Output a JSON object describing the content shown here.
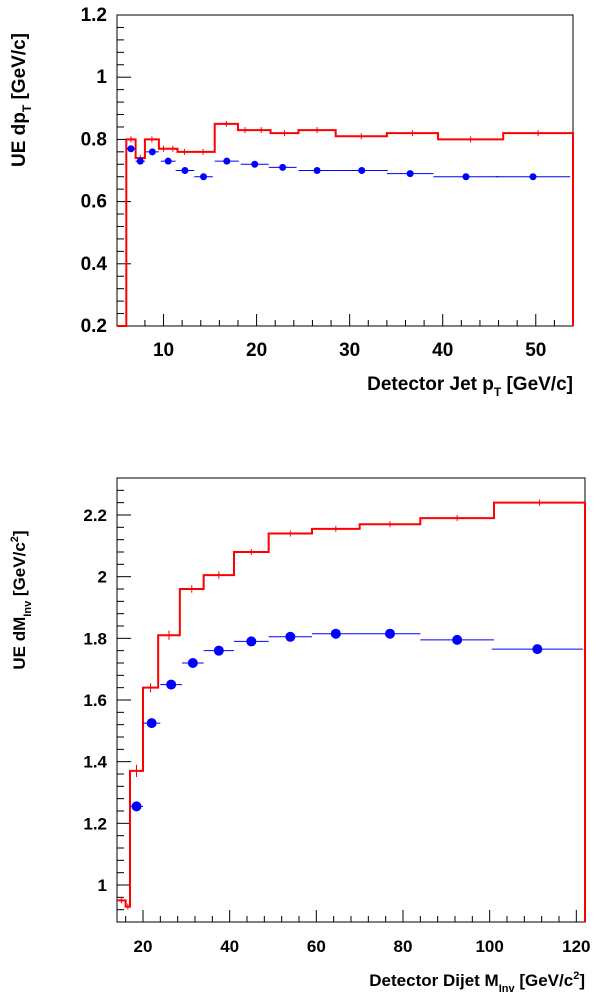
{
  "chart_data": [
    {
      "type": "line",
      "title": "",
      "xlabel": {
        "main": "Detector Jet p",
        "sub": "T",
        "unit": " [GeV/c]"
      },
      "ylabel": {
        "main": "UE dp",
        "sub": "T",
        "unit": " [GeV/c]"
      },
      "xlim": [
        5,
        54
      ],
      "ylim": [
        0.2,
        1.2
      ],
      "xticks": [
        10,
        20,
        30,
        40,
        50
      ],
      "xtick_labels": [
        "10",
        "20",
        "30",
        "40",
        "50"
      ],
      "yticks": [
        0.2,
        0.4,
        0.6,
        0.8,
        1.0,
        1.2
      ],
      "ytick_labels": [
        "0.2",
        "0.4",
        "0.6",
        "0.8",
        "1",
        "1.2"
      ],
      "grid": false,
      "series": [
        {
          "style": "step",
          "color": "#ff0000",
          "edges": [
            5,
            6,
            7,
            8,
            9.5,
            10.5,
            11.5,
            13,
            15.5,
            18,
            19.5,
            21.5,
            24.5,
            28.5,
            34,
            39.5,
            46.5,
            54
          ],
          "values": [
            0.2,
            0.8,
            0.74,
            0.8,
            0.77,
            0.77,
            0.76,
            0.76,
            0.85,
            0.83,
            0.83,
            0.82,
            0.83,
            0.81,
            0.82,
            0.8,
            0.82
          ],
          "errors": [
            0.0,
            0.01,
            0.01,
            0.01,
            0.01,
            0.005,
            0.005,
            0.005,
            0.005,
            0.004,
            0.004,
            0.004,
            0.004,
            0.004,
            0.004,
            0.004,
            0.004
          ]
        },
        {
          "style": "points",
          "color": "#0000ff",
          "x": [
            6.5,
            7.5,
            8.8,
            10.5,
            12.3,
            14.3,
            16.8,
            19.8,
            22.8,
            26.5,
            31.3,
            36.5,
            42.5,
            49.7
          ],
          "xerr": [
            0.5,
            0.5,
            0.7,
            0.8,
            1.0,
            1.0,
            1.3,
            1.5,
            1.5,
            2.0,
            2.8,
            2.5,
            3.5,
            4.0
          ],
          "y": [
            0.77,
            0.73,
            0.76,
            0.73,
            0.7,
            0.68,
            0.73,
            0.72,
            0.71,
            0.7,
            0.7,
            0.69,
            0.68,
            0.68
          ]
        }
      ]
    },
    {
      "type": "line",
      "title": "",
      "xlabel": {
        "main": "Detector Dijet M",
        "sub": "Inv",
        "unit": " [GeV/c",
        "sup": "2",
        "close": "]"
      },
      "ylabel": {
        "main": "UE dM",
        "sub": "Inv",
        "unit": " [GeV/c",
        "sup": "2",
        "close": "]"
      },
      "xlim": [
        14,
        122
      ],
      "ylim": [
        0.88,
        2.32
      ],
      "xticks": [
        20,
        40,
        60,
        80,
        100,
        120
      ],
      "xtick_labels": [
        "20",
        "40",
        "60",
        "80",
        "100",
        "120"
      ],
      "yticks": [
        1.0,
        1.2,
        1.4,
        1.6,
        1.8,
        2.0,
        2.2
      ],
      "ytick_labels": [
        "1",
        "1.2",
        "1.4",
        "1.6",
        "1.8",
        "2",
        "2.2"
      ],
      "grid": false,
      "series": [
        {
          "style": "step",
          "color": "#ff0000",
          "edges": [
            14,
            16,
            17,
            20,
            23.5,
            28.5,
            34,
            41,
            49,
            59,
            70,
            84,
            101,
            122
          ],
          "values": [
            0.95,
            0.93,
            1.37,
            1.64,
            1.81,
            1.96,
            2.005,
            2.08,
            2.14,
            2.155,
            2.17,
            2.19,
            2.24
          ],
          "errors": [
            0.0,
            0.0,
            0.02,
            0.015,
            0.015,
            0.012,
            0.012,
            0.01,
            0.01,
            0.01,
            0.01,
            0.01,
            0.01
          ]
        },
        {
          "style": "points",
          "color": "#0000ff",
          "x": [
            18.5,
            22,
            26.5,
            31.5,
            37.5,
            45,
            54,
            64.5,
            77,
            92.5,
            111
          ],
          "xerr": [
            1.5,
            2.0,
            2.5,
            2.5,
            3.5,
            4.0,
            5.0,
            5.5,
            7.0,
            8.5,
            10.5
          ],
          "y": [
            1.255,
            1.525,
            1.65,
            1.72,
            1.76,
            1.79,
            1.805,
            1.815,
            1.815,
            1.795,
            1.765
          ]
        }
      ]
    }
  ]
}
